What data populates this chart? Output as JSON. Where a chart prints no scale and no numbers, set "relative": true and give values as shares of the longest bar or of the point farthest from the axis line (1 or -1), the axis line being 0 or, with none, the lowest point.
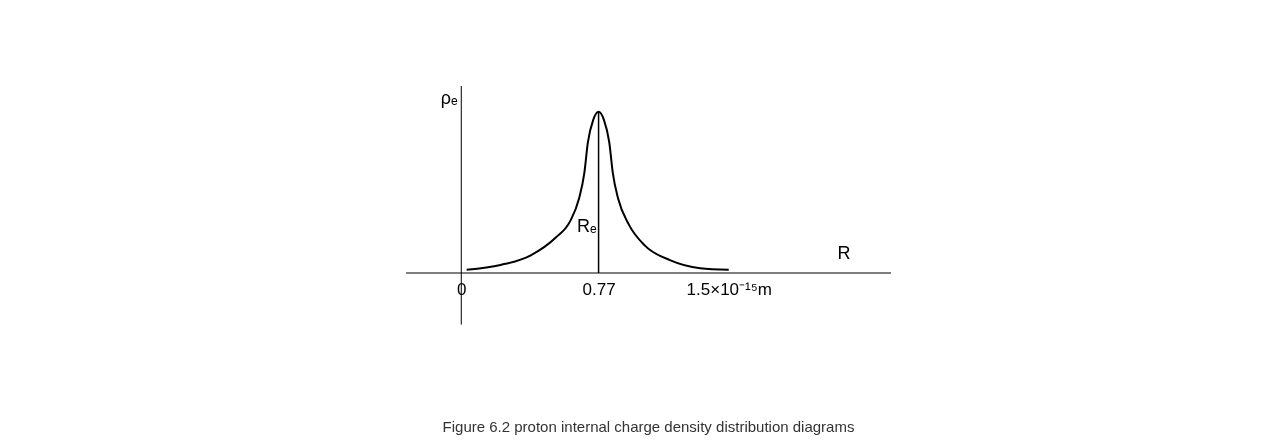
{
  "chart_data": {
    "type": "line",
    "relative": true,
    "xlabel": "R",
    "ylabel": "ρₑ",
    "x": [
      0.03,
      0.22,
      0.39,
      0.53,
      0.61,
      0.66,
      0.69,
      0.71,
      0.74,
      0.77,
      0.8,
      0.83,
      0.85,
      0.88,
      0.94,
      1.03,
      1.17,
      1.34,
      1.5
    ],
    "series": [
      {
        "color": "#000000",
        "values": [
          0.02,
          0.05,
          0.11,
          0.22,
          0.32,
          0.46,
          0.62,
          0.81,
          0.95,
          1,
          0.95,
          0.81,
          0.62,
          0.46,
          0.3,
          0.17,
          0.08,
          0.03,
          0.02
        ]
      }
    ],
    "xlim": [
      -0.31,
      2.41
    ],
    "xticks": [
      0,
      0.77,
      {
        "value": 1.5,
        "label": "1.5×10⁻¹⁵m"
      }
    ],
    "ref_lines": [
      {
        "axis": "x",
        "value": 0.77,
        "label": "Rₑ",
        "color": "#000000"
      }
    ],
    "grid": false,
    "marker": "none",
    "line_style": "solid",
    "annotations": [
      "Figure 6.2 proton internal charge density distribution diagrams"
    ]
  }
}
